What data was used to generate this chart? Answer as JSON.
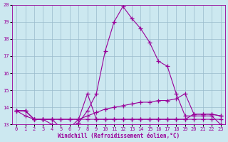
{
  "xlabel": "Windchill (Refroidissement éolien,°C)",
  "xlim": [
    -0.5,
    23.5
  ],
  "ylim": [
    13,
    20
  ],
  "xticks": [
    0,
    1,
    2,
    3,
    4,
    5,
    6,
    7,
    8,
    9,
    10,
    11,
    12,
    13,
    14,
    15,
    16,
    17,
    18,
    19,
    20,
    21,
    22,
    23
  ],
  "yticks": [
    13,
    14,
    15,
    16,
    17,
    18,
    19,
    20
  ],
  "background_color": "#cce8f0",
  "line_color": "#990099",
  "grid_color": "#99bbcc",
  "line_width": 0.8,
  "marker": "+",
  "marker_size": 4,
  "lines": [
    {
      "x": [
        0,
        1,
        2,
        3,
        4,
        5,
        6,
        7,
        8,
        9,
        10,
        11,
        12,
        13,
        14,
        15,
        16,
        17,
        18,
        19,
        20,
        21,
        22,
        23
      ],
      "y": [
        13.8,
        13.8,
        13.3,
        13.3,
        13.3,
        12.8,
        12.8,
        13.1,
        13.8,
        14.8,
        17.3,
        19.0,
        19.9,
        19.2,
        18.6,
        17.8,
        16.7,
        16.4,
        14.8,
        13.5,
        13.5,
        13.5,
        13.5,
        13.0
      ]
    },
    {
      "x": [
        0,
        1,
        2,
        3,
        4,
        5,
        6,
        7,
        8,
        9,
        10,
        11,
        12,
        13,
        14,
        15,
        16,
        17,
        18,
        19,
        20,
        21,
        22,
        23
      ],
      "y": [
        13.8,
        13.8,
        13.3,
        13.3,
        13.3,
        13.3,
        13.3,
        13.3,
        13.3,
        13.3,
        13.3,
        13.3,
        13.3,
        13.3,
        13.3,
        13.3,
        13.3,
        13.3,
        13.3,
        13.3,
        13.3,
        13.3,
        13.3,
        13.3
      ]
    },
    {
      "x": [
        0,
        1,
        2,
        3,
        4,
        5,
        6,
        7,
        8,
        9,
        10,
        11,
        12,
        13,
        14,
        15,
        16,
        17,
        18,
        19,
        20,
        21,
        22,
        23
      ],
      "y": [
        13.8,
        13.8,
        13.3,
        13.3,
        13.3,
        13.3,
        13.3,
        13.3,
        13.5,
        13.7,
        13.9,
        14.0,
        14.1,
        14.2,
        14.3,
        14.3,
        14.4,
        14.4,
        14.5,
        14.8,
        13.6,
        13.6,
        13.6,
        13.5
      ]
    },
    {
      "x": [
        0,
        1,
        2,
        3,
        4,
        5,
        6,
        7,
        8,
        9,
        10,
        11,
        12,
        13,
        14,
        15,
        16,
        17,
        18,
        19,
        20,
        21,
        22,
        23
      ],
      "y": [
        13.8,
        13.5,
        13.3,
        13.3,
        13.0,
        12.8,
        12.8,
        13.3,
        14.8,
        13.3,
        13.3,
        13.3,
        13.3,
        13.3,
        13.3,
        13.3,
        13.3,
        13.3,
        13.3,
        13.3,
        13.6,
        13.6,
        13.6,
        13.5
      ]
    }
  ]
}
